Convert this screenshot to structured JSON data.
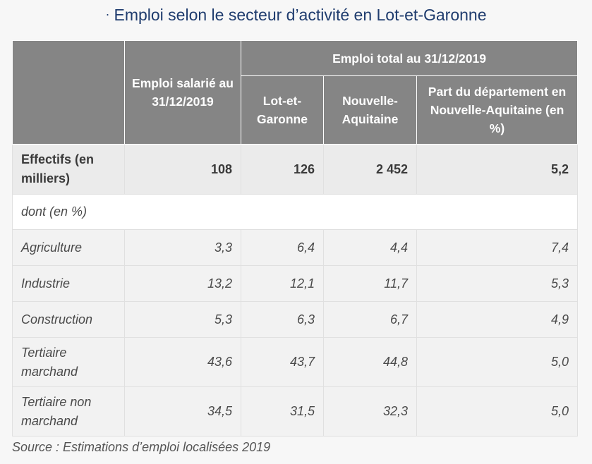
{
  "title": {
    "bullet": "·",
    "text": "Emploi selon le secteur d’activité en Lot-et-Garonne"
  },
  "header": {
    "emploi_salarie": "Emploi salarié au 31/12/2019",
    "emploi_total": "Emploi total au 31/12/2019",
    "lot_et_garonne": "Lot-et-Garonne",
    "nouvelle_aquitaine": "Nouvelle-Aquitaine",
    "part": "Part du département en Nouvelle-Aquitaine (en %)"
  },
  "effectifs": {
    "label": "Effectifs (en milliers)",
    "values": [
      "108",
      "126",
      "2 452",
      "5,2"
    ]
  },
  "dont_label": "dont (en %)",
  "sectors": [
    {
      "label": "Agriculture",
      "values": [
        "3,3",
        "6,4",
        "4,4",
        "7,4"
      ]
    },
    {
      "label": "Industrie",
      "values": [
        "13,2",
        "12,1",
        "11,7",
        "5,3"
      ]
    },
    {
      "label": "Construction",
      "values": [
        "5,3",
        "6,3",
        "6,7",
        "4,9"
      ]
    },
    {
      "label": "Tertiaire marchand",
      "values": [
        "43,6",
        "43,7",
        "44,8",
        "5,0"
      ]
    },
    {
      "label": "Tertiaire non marchand",
      "values": [
        "34,5",
        "31,5",
        "32,3",
        "5,0"
      ]
    }
  ],
  "source": "Source : Estimations d’emploi localisées 2019",
  "colors": {
    "title": "#1f3c6e",
    "header_bg": "#858585",
    "row_alt": "#f2f2f2"
  }
}
